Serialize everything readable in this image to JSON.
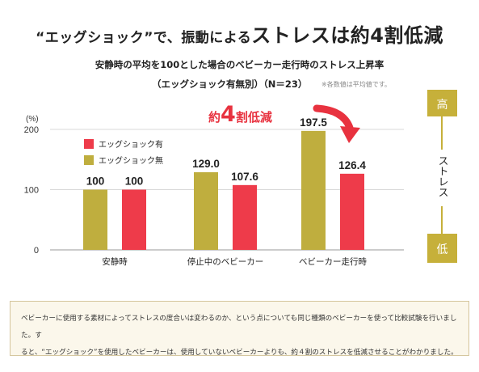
{
  "headline": {
    "part1": "“エッグショック”で、振動による",
    "part2": "ストレスは約4割低減"
  },
  "subtitle": {
    "line1": "安静時の平均を100とした場合のベビーカー走行時のストレス上昇率",
    "line2": "（エッグショック有無別）（N＝23）",
    "note": "※各数値は平均値です。"
  },
  "callout": {
    "prefix": "約",
    "number": "4",
    "suffix": "割低減"
  },
  "scale": {
    "high": "高",
    "label": "ストレス",
    "low": "低"
  },
  "colors": {
    "with": "#ee3b4a",
    "without": "#bfae3e",
    "gold": "#c6b03a",
    "arrow": "#e8323f"
  },
  "chart_data": {
    "type": "bar",
    "categories": [
      "安静時",
      "停止中のベビーカー",
      "ベビーカー走行時"
    ],
    "series": [
      {
        "name": "エッグショック無",
        "values": [
          100,
          129.0,
          197.5
        ]
      },
      {
        "name": "エッグショック有",
        "values": [
          100,
          107.6,
          126.4
        ]
      }
    ],
    "data_labels": [
      [
        "100",
        "129.0",
        "197.5"
      ],
      [
        "100",
        "107.6",
        "126.4"
      ]
    ],
    "legend": [
      "エッグショック有",
      "エッグショック無"
    ],
    "legend_position": "top-left",
    "ylabel": "(%)",
    "yticks": [
      "0",
      "100",
      "200"
    ],
    "ylim": [
      0,
      200
    ],
    "grid": true
  },
  "footnote": {
    "line1": "ベビーカーに使用する素材によってストレスの度合いは変わるのか、という点についても同じ種類のベビーカーを使って比較試験を行いました。す",
    "line2": "ると、“エッグショック”を使用したベビーカーは、使用していないベビーカーよりも、約４割のストレスを低減させることがわかりました。"
  }
}
